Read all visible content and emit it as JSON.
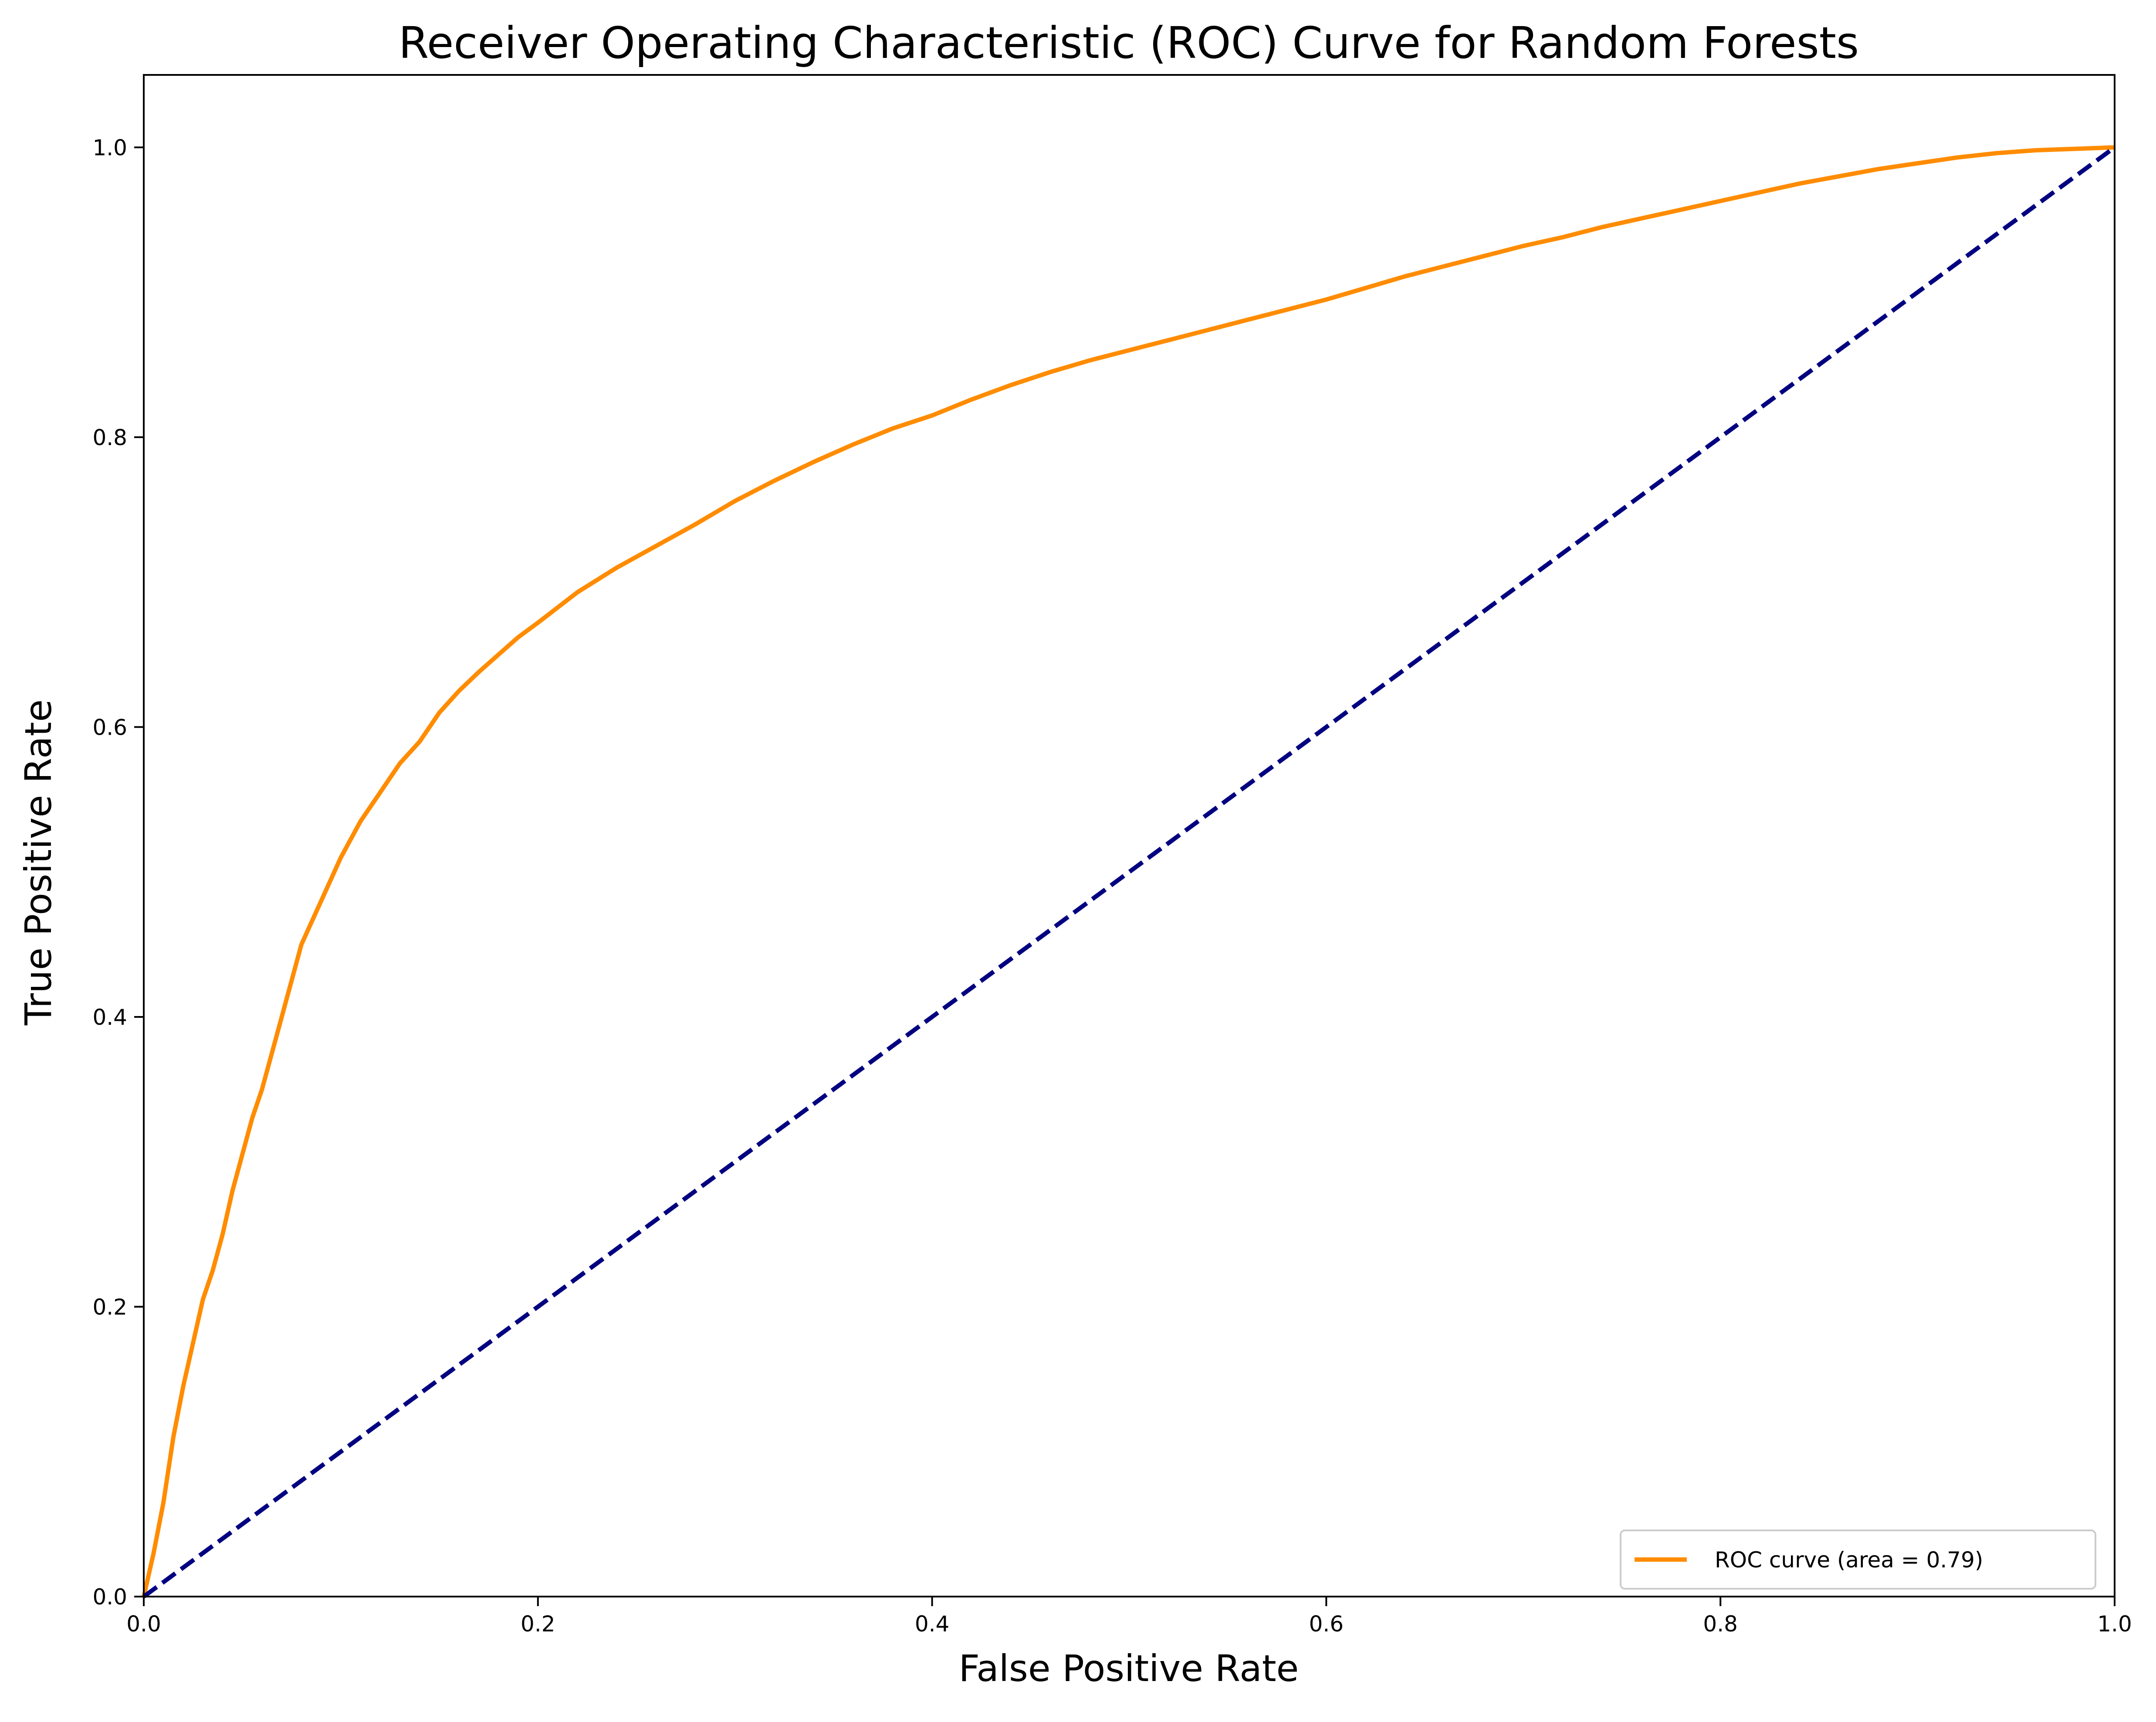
{
  "chart_data": {
    "type": "line",
    "title": "Receiver Operating Characteristic (ROC) Curve for Random Forests",
    "xlabel": "False Positive Rate",
    "ylabel": "True Positive Rate",
    "xlim": [
      0.0,
      1.0
    ],
    "ylim": [
      0.0,
      1.05
    ],
    "xticks": [
      0.0,
      0.2,
      0.4,
      0.6,
      0.8,
      1.0
    ],
    "xtick_labels": [
      "0.0",
      "0.2",
      "0.4",
      "0.6",
      "0.8",
      "1.0"
    ],
    "yticks": [
      0.0,
      0.2,
      0.4,
      0.6,
      0.8,
      1.0
    ],
    "ytick_labels": [
      "0.0",
      "0.2",
      "0.4",
      "0.6",
      "0.8",
      "1.0"
    ],
    "grid": false,
    "legend_position": "lower-right",
    "series": [
      {
        "name": "ROC curve (area = 0.79)",
        "color": "#ff8c00",
        "style": "solid",
        "x": [
          0.0,
          0.005,
          0.01,
          0.015,
          0.02,
          0.025,
          0.03,
          0.035,
          0.04,
          0.045,
          0.05,
          0.055,
          0.06,
          0.065,
          0.07,
          0.075,
          0.08,
          0.085,
          0.09,
          0.095,
          0.1,
          0.11,
          0.12,
          0.13,
          0.14,
          0.15,
          0.16,
          0.17,
          0.18,
          0.19,
          0.2,
          0.22,
          0.24,
          0.26,
          0.28,
          0.3,
          0.32,
          0.34,
          0.36,
          0.38,
          0.4,
          0.42,
          0.44,
          0.46,
          0.48,
          0.5,
          0.52,
          0.54,
          0.56,
          0.58,
          0.6,
          0.62,
          0.64,
          0.66,
          0.68,
          0.7,
          0.72,
          0.74,
          0.76,
          0.78,
          0.8,
          0.82,
          0.84,
          0.86,
          0.88,
          0.9,
          0.92,
          0.94,
          0.96,
          0.98,
          1.0
        ],
        "y": [
          0.0,
          0.03,
          0.065,
          0.11,
          0.145,
          0.175,
          0.205,
          0.225,
          0.25,
          0.28,
          0.305,
          0.33,
          0.35,
          0.375,
          0.4,
          0.425,
          0.45,
          0.465,
          0.48,
          0.495,
          0.51,
          0.535,
          0.555,
          0.575,
          0.59,
          0.61,
          0.625,
          0.638,
          0.65,
          0.662,
          0.672,
          0.693,
          0.71,
          0.725,
          0.74,
          0.756,
          0.77,
          0.783,
          0.795,
          0.806,
          0.815,
          0.826,
          0.836,
          0.845,
          0.853,
          0.86,
          0.867,
          0.874,
          0.881,
          0.888,
          0.895,
          0.903,
          0.911,
          0.918,
          0.925,
          0.932,
          0.938,
          0.945,
          0.951,
          0.957,
          0.963,
          0.969,
          0.975,
          0.98,
          0.985,
          0.989,
          0.993,
          0.996,
          0.998,
          0.999,
          1.0
        ]
      },
      {
        "name": "",
        "color": "#000080",
        "style": "dashed",
        "x": [
          0.0,
          1.0
        ],
        "y": [
          0.0,
          1.0
        ]
      }
    ]
  }
}
